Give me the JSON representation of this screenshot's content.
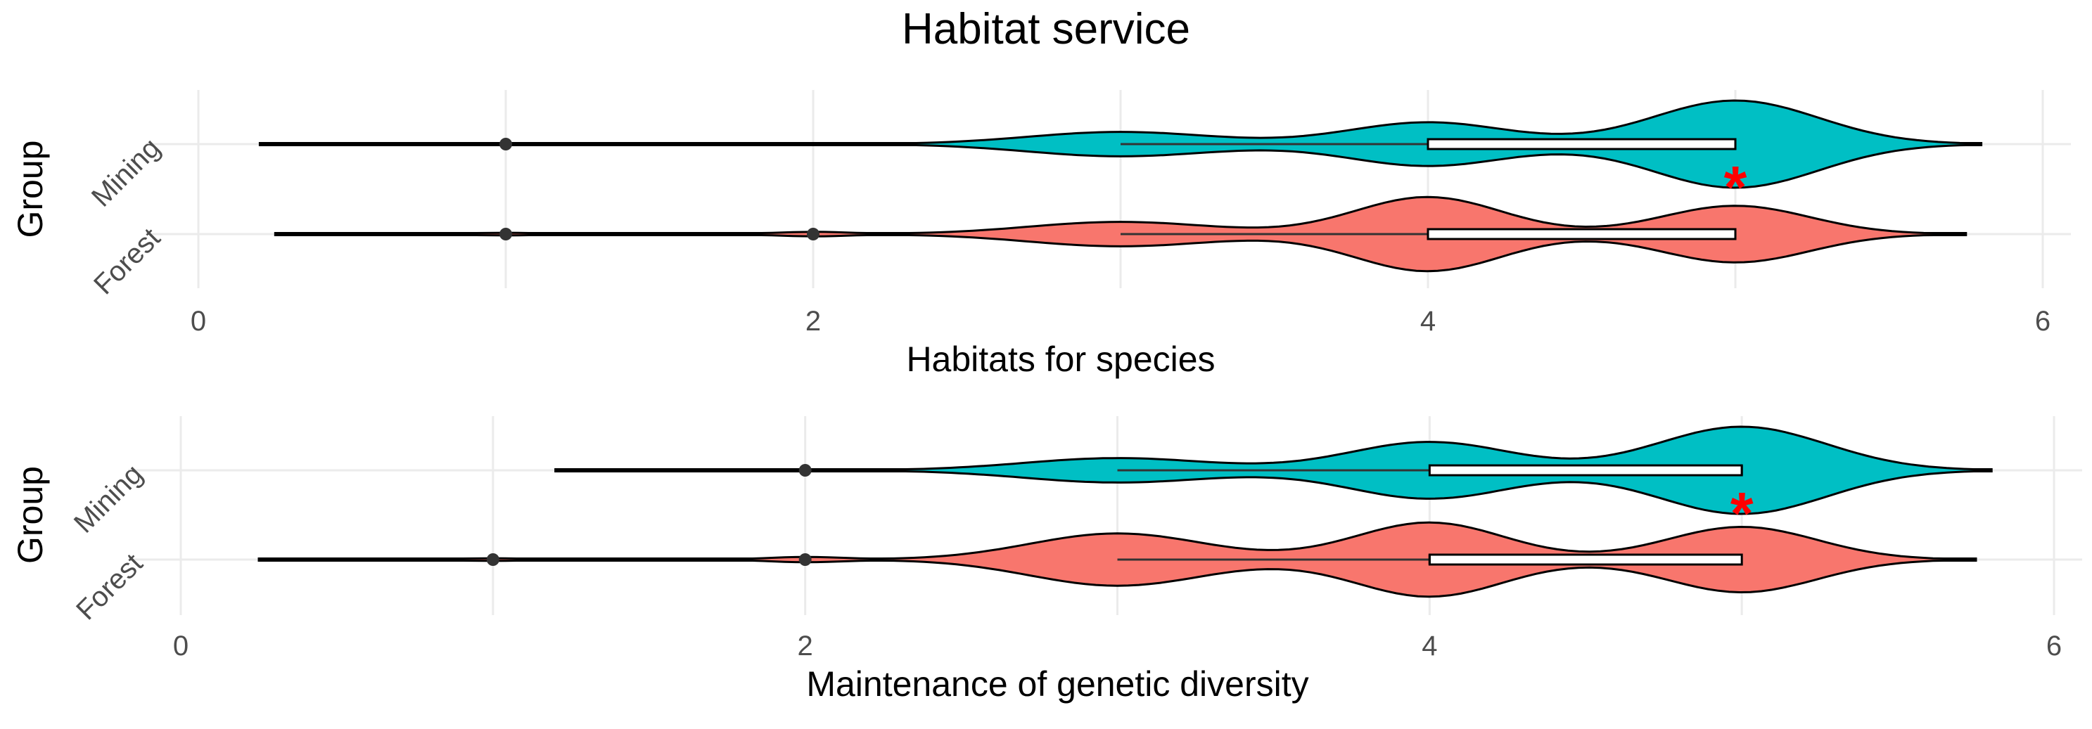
{
  "chart_data": {
    "type": "violin",
    "title": "Habitat service",
    "colors": {
      "Mining": "#00bfc4",
      "Forest": "#f8766d",
      "significance": "#ff0000"
    },
    "panels": [
      {
        "id": "habitats",
        "xlabel": "Habitats  for  species",
        "ylabel": "Group",
        "xlim": [
          0,
          6
        ],
        "xticks": [
          "0",
          "2",
          "4",
          "6"
        ],
        "groups": [
          {
            "name": "Mining",
            "significance": "*",
            "box": {
              "q1": 4,
              "median": 5,
              "q3": 5,
              "whisker_low": 3,
              "whisker_high": 5
            },
            "outliers": [
              1
            ],
            "density_range": [
              0.2,
              5.8
            ],
            "density_peaks": [
              {
                "at": 1,
                "height": 0.004,
                "width": 0.12
              },
              {
                "at": 2,
                "height": 0.004,
                "width": 0.12
              },
              {
                "at": 3,
                "height": 0.28,
                "width": 0.3
              },
              {
                "at": 4,
                "height": 0.5,
                "width": 0.26
              },
              {
                "at": 5,
                "height": 1.0,
                "width": 0.27
              }
            ]
          },
          {
            "name": "Forest",
            "significance": "",
            "box": {
              "q1": 4,
              "median": 4,
              "q3": 5,
              "whisker_low": 3,
              "whisker_high": 5
            },
            "outliers": [
              1,
              2
            ],
            "density_range": [
              0.25,
              5.75
            ],
            "density_peaks": [
              {
                "at": 1,
                "height": 0.03,
                "width": 0.12
              },
              {
                "at": 2,
                "height": 0.05,
                "width": 0.12
              },
              {
                "at": 3,
                "height": 0.28,
                "width": 0.3
              },
              {
                "at": 4,
                "height": 0.85,
                "width": 0.24
              },
              {
                "at": 5,
                "height": 0.65,
                "width": 0.24
              }
            ]
          }
        ]
      },
      {
        "id": "genetic",
        "xlabel": "Maintenance  of  genetic  diversity",
        "ylabel": "Group",
        "xlim": [
          0,
          6
        ],
        "xticks": [
          "0",
          "2",
          "4",
          "6"
        ],
        "groups": [
          {
            "name": "Mining",
            "significance": "*",
            "box": {
              "q1": 4,
              "median": 5,
              "q3": 5,
              "whisker_low": 3,
              "whisker_high": 5
            },
            "outliers": [
              2
            ],
            "density_range": [
              1.2,
              5.8
            ],
            "density_peaks": [
              {
                "at": 2,
                "height": 0.02,
                "width": 0.12
              },
              {
                "at": 3,
                "height": 0.28,
                "width": 0.3
              },
              {
                "at": 4,
                "height": 0.65,
                "width": 0.26
              },
              {
                "at": 5,
                "height": 1.0,
                "width": 0.27
              }
            ]
          },
          {
            "name": "Forest",
            "significance": "",
            "box": {
              "q1": 4,
              "median": 4,
              "q3": 5,
              "whisker_low": 3,
              "whisker_high": 5
            },
            "outliers": [
              1,
              2
            ],
            "density_range": [
              0.25,
              5.75
            ],
            "density_peaks": [
              {
                "at": 1,
                "height": 0.03,
                "width": 0.12
              },
              {
                "at": 2,
                "height": 0.06,
                "width": 0.12
              },
              {
                "at": 3,
                "height": 0.6,
                "width": 0.28
              },
              {
                "at": 4,
                "height": 0.85,
                "width": 0.24
              },
              {
                "at": 5,
                "height": 0.75,
                "width": 0.24
              }
            ]
          }
        ]
      }
    ]
  }
}
